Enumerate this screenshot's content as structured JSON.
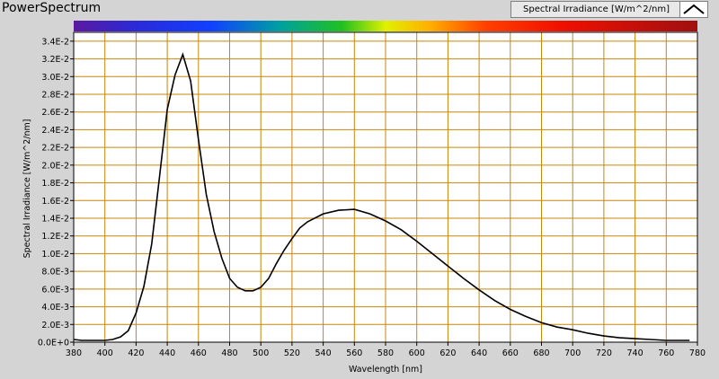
{
  "window": {
    "title": "PowerSpectrum"
  },
  "legend": {
    "label": "Spectral Irradiance [W/m^2/nm]"
  },
  "colors": {
    "plot_background": "#ffffff",
    "grid": "#c8860a",
    "curve": "#000000"
  },
  "chart_data": {
    "type": "line",
    "xlabel": "Wavelength [nm]",
    "ylabel": "Spectral Irradiance [W/m^2/nm]",
    "xlim": [
      380,
      780
    ],
    "ylim": [
      0,
      0.035
    ],
    "grid": true,
    "legend_placement": "top-right",
    "color_bar": "visible spectrum 380–780 nm",
    "x_ticks": [
      380,
      400,
      420,
      440,
      460,
      480,
      500,
      520,
      540,
      560,
      580,
      600,
      620,
      640,
      660,
      680,
      700,
      720,
      740,
      760,
      780
    ],
    "x_tick_labels": [
      "380",
      "400",
      "420",
      "440",
      "460",
      "480",
      "500",
      "520",
      "540",
      "560",
      "580",
      "600",
      "620",
      "640",
      "660",
      "680",
      "700",
      "720",
      "740",
      "760",
      "780"
    ],
    "y_ticks": [
      0,
      0.002,
      0.004,
      0.006,
      0.008,
      0.01,
      0.012,
      0.014,
      0.016,
      0.018,
      0.02,
      0.022,
      0.024,
      0.026,
      0.028,
      0.03,
      0.032,
      0.034
    ],
    "y_tick_labels": [
      "0.0E+0",
      "2.0E-3",
      "4.0E-3",
      "6.0E-3",
      "8.0E-3",
      "1.0E-2",
      "1.2E-2",
      "1.4E-2",
      "1.6E-2",
      "1.8E-2",
      "2.0E-2",
      "2.2E-2",
      "2.4E-2",
      "2.6E-2",
      "2.8E-2",
      "3.0E-2",
      "3.2E-2",
      "3.4E-2"
    ],
    "series": [
      {
        "x": [
          380,
          385,
          390,
          395,
          400,
          405,
          410,
          415,
          420,
          425,
          430,
          435,
          440,
          445,
          450,
          455,
          460,
          465,
          470,
          475,
          480,
          485,
          490,
          495,
          500,
          505,
          510,
          515,
          520,
          525,
          530,
          540,
          550,
          560,
          570,
          580,
          590,
          600,
          610,
          620,
          630,
          640,
          650,
          660,
          670,
          680,
          690,
          700,
          710,
          720,
          730,
          740,
          750,
          760,
          770,
          775
        ],
        "y": [
          0.0003,
          0.0002,
          0.0002,
          0.0002,
          0.0002,
          0.0003,
          0.0006,
          0.0013,
          0.0033,
          0.0063,
          0.0111,
          0.0186,
          0.0263,
          0.0302,
          0.0325,
          0.0295,
          0.0229,
          0.0167,
          0.0125,
          0.0095,
          0.0072,
          0.0062,
          0.0058,
          0.0058,
          0.0062,
          0.0072,
          0.0089,
          0.0104,
          0.0117,
          0.0129,
          0.0136,
          0.0145,
          0.0149,
          0.015,
          0.0145,
          0.0137,
          0.0127,
          0.0114,
          0.01,
          0.0086,
          0.0072,
          0.0059,
          0.0047,
          0.0037,
          0.0029,
          0.0022,
          0.0017,
          0.0014,
          0.001,
          0.0007,
          0.0005,
          0.0004,
          0.0003,
          0.0002,
          0.0002,
          0.0002
        ]
      }
    ]
  }
}
